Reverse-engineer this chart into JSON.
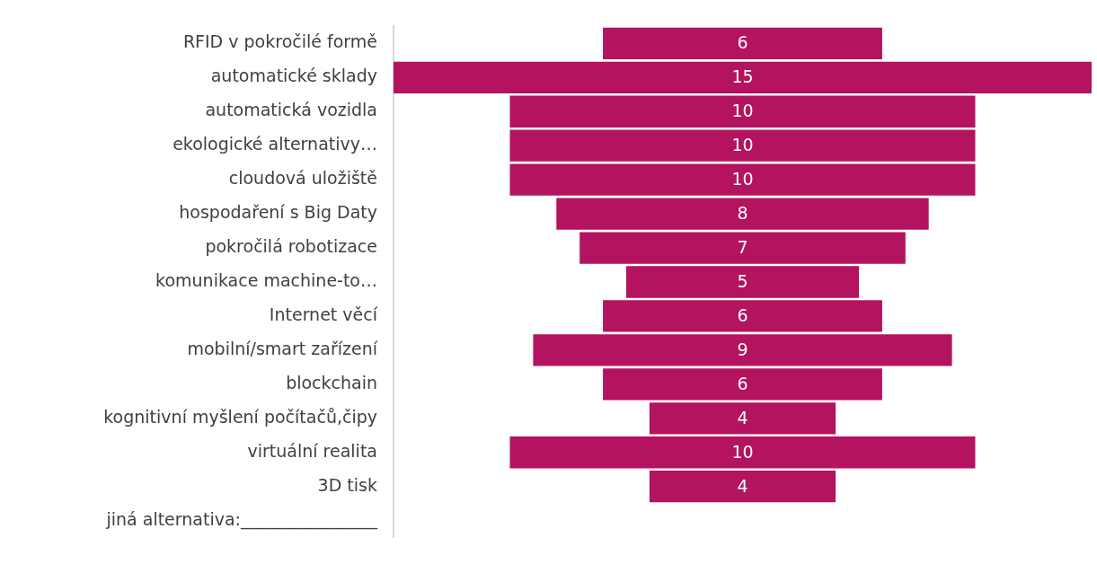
{
  "chart_data": {
    "type": "other",
    "categories": [
      "RFID v pokročilé formě",
      "automatické sklady",
      "automatická vozidla",
      "ekologické alternativy…",
      "cloudová uložiště",
      "hospodaření s Big Daty",
      "pokročilá robotizace",
      "komunikace machine-to…",
      "Internet věcí",
      "mobilní/smart zařízení",
      "blockchain",
      "kognitivní myšlení počítačů,čipy",
      "virtuální realita",
      "3D tisk",
      "jiná alternativa:________________"
    ],
    "values": [
      6,
      15,
      10,
      10,
      10,
      8,
      7,
      5,
      6,
      9,
      6,
      4,
      10,
      4,
      null
    ],
    "color": "#b3135f",
    "data_labels": true
  }
}
